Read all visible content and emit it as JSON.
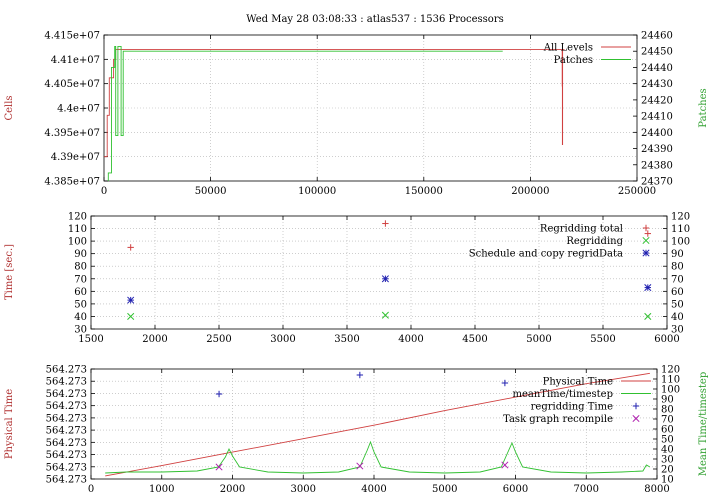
{
  "title": "Wed May 28 03:08:33 : atlas537 : 1536 Processors",
  "colors": {
    "red": "#d04040",
    "green": "#30c030",
    "blue": "#2020b0",
    "purple": "#b020b0",
    "grid": "#b0b0b0"
  },
  "chart_data": [
    {
      "type": "line",
      "ylabel": "Cells",
      "y2label": "Patches",
      "xlim": [
        0,
        250000
      ],
      "ylim": [
        43850000,
        44150000
      ],
      "y2lim": [
        24370,
        24460
      ],
      "xticks": [
        0,
        50000,
        100000,
        150000,
        200000,
        250000
      ],
      "xtick_labels": [
        "0",
        "50000",
        "100000",
        "150000",
        "200000",
        "250000"
      ],
      "yticks": [
        43850000,
        43900000,
        43950000,
        44000000,
        44050000,
        44100000,
        44150000
      ],
      "ytick_labels": [
        "4.385e+07",
        "4.39e+07",
        "4.395e+07",
        "4.4e+07",
        "4.405e+07",
        "4.41e+07",
        "4.415e+07"
      ],
      "y2ticks": [
        24370,
        24380,
        24390,
        24400,
        24410,
        24420,
        24430,
        24440,
        24450,
        24460
      ],
      "y2tick_labels": [
        "24370",
        "24380",
        "24390",
        "24400",
        "24410",
        "24420",
        "24430",
        "24440",
        "24450",
        "24460"
      ],
      "legend_position": "top-right",
      "series": [
        {
          "name": "All Levels",
          "axis": "y",
          "color": "#d04040",
          "x": [
            0,
            1500,
            1500,
            2500,
            2500,
            4500,
            4500,
            5500,
            5500,
            8000,
            8000,
            100000,
            200000,
            214900,
            214900,
            215000,
            215000,
            215100,
            215100,
            216000
          ],
          "y": [
            43900000,
            43900000,
            43985000,
            43985000,
            44062000,
            44062000,
            44100000,
            44100000,
            44120000,
            44120000,
            44120000,
            44120000,
            44120000,
            44120000,
            44045000,
            44045000,
            43925000,
            43925000,
            44120000,
            44120000
          ]
        },
        {
          "name": "Patches",
          "axis": "y2",
          "color": "#30c030",
          "x": [
            2000,
            2000,
            3500,
            3500,
            5000,
            5000,
            5500,
            5500,
            6500,
            6500,
            8000,
            8000,
            9000,
            9000,
            187000
          ],
          "y": [
            24370,
            24375,
            24375,
            24440,
            24440,
            24453,
            24453,
            24398,
            24398,
            24453,
            24453,
            24398,
            24398,
            24450,
            24450
          ]
        }
      ]
    },
    {
      "type": "scatter",
      "ylabel": "Time [sec.]",
      "xlim": [
        1500,
        6000
      ],
      "ylim": [
        30,
        120
      ],
      "xticks": [
        1500,
        2000,
        2500,
        3000,
        3500,
        4000,
        4500,
        5000,
        5500,
        6000
      ],
      "xtick_labels": [
        "1500",
        "2000",
        "2500",
        "3000",
        "3500",
        "4000",
        "4500",
        "5000",
        "5500",
        "6000"
      ],
      "yticks": [
        30,
        40,
        50,
        60,
        70,
        80,
        90,
        100,
        110,
        120
      ],
      "ytick_labels": [
        "30",
        "40",
        "50",
        "60",
        "70",
        "80",
        "90",
        "100",
        "110",
        "120"
      ],
      "y2tick_labels": [
        "30",
        "40",
        "50",
        "60",
        "70",
        "80",
        "90",
        "100",
        "110",
        "120"
      ],
      "legend_position": "top-right",
      "series": [
        {
          "name": "Regridding total",
          "marker": "plus",
          "color": "#d04040",
          "x": [
            1810,
            3800,
            5850
          ],
          "y": [
            95,
            114,
            106
          ]
        },
        {
          "name": "Regridding",
          "marker": "cross",
          "color": "#30c030",
          "x": [
            1810,
            3800,
            5850
          ],
          "y": [
            40,
            41,
            40
          ]
        },
        {
          "name": "Schedule and copy regridData",
          "marker": "star",
          "color": "#2020b0",
          "x": [
            1810,
            3800,
            5850
          ],
          "y": [
            53,
            70,
            63
          ]
        }
      ]
    },
    {
      "type": "line",
      "ylabel": "Physical Time",
      "y2label": "Mean Time/timestep",
      "xlim": [
        0,
        8000
      ],
      "ylim": [
        0,
        9
      ],
      "y2lim": [
        10,
        120
      ],
      "xticks": [
        0,
        1000,
        2000,
        3000,
        4000,
        5000,
        6000,
        7000,
        8000
      ],
      "xtick_labels": [
        "0",
        "1000",
        "2000",
        "3000",
        "4000",
        "5000",
        "6000",
        "7000",
        "8000"
      ],
      "yticks": [
        0,
        1,
        2,
        3,
        4,
        5,
        6,
        7,
        8,
        9
      ],
      "ytick_labels": [
        "564.273",
        "564.273",
        "564.273",
        "564.273",
        "564.273",
        "564.273",
        "564.273",
        "564.273",
        "564.273",
        "564.273"
      ],
      "y2ticks": [
        10,
        20,
        30,
        40,
        50,
        60,
        70,
        80,
        90,
        100,
        110,
        120
      ],
      "y2tick_labels": [
        "10",
        "20",
        "30",
        "40",
        "50",
        "60",
        "70",
        "80",
        "90",
        "100",
        "110",
        "120"
      ],
      "legend_position": "top-right",
      "series": [
        {
          "name": "Physical Time",
          "type": "line",
          "axis": "y",
          "color": "#d04040",
          "x": [
            200,
            1000,
            2000,
            3000,
            4000,
            5000,
            6000,
            7000,
            7900
          ],
          "y": [
            0.25,
            1.1,
            2.2,
            3.3,
            4.4,
            5.6,
            6.7,
            7.8,
            8.65
          ]
        },
        {
          "name": "meanTime/timestep",
          "type": "line",
          "axis": "y2",
          "color": "#30c030",
          "x": [
            200,
            500,
            1000,
            1500,
            1800,
            1900,
            1950,
            2000,
            2100,
            2500,
            3000,
            3500,
            3800,
            3900,
            3950,
            4000,
            4100,
            4500,
            5000,
            5500,
            5800,
            5900,
            5950,
            6000,
            6100,
            6500,
            7000,
            7500,
            7800,
            7850,
            7900
          ],
          "y": [
            16,
            17,
            17,
            18,
            22,
            32,
            40,
            33,
            22,
            17,
            16,
            17,
            22,
            38,
            47,
            37,
            22,
            17,
            16,
            17,
            22,
            38,
            46,
            37,
            22,
            17,
            16,
            17,
            18,
            24,
            22
          ]
        },
        {
          "name": "regridding Time",
          "type": "scatter",
          "marker": "plus",
          "axis": "y2",
          "color": "#2020b0",
          "x": [
            1810,
            3800,
            5850
          ],
          "y": [
            95,
            114,
            106
          ]
        },
        {
          "name": "Task graph recompile",
          "type": "scatter",
          "marker": "cross",
          "axis": "y2",
          "color": "#b020b0",
          "x": [
            1810,
            3800,
            5850
          ],
          "y": [
            22,
            23,
            24
          ]
        }
      ]
    }
  ]
}
